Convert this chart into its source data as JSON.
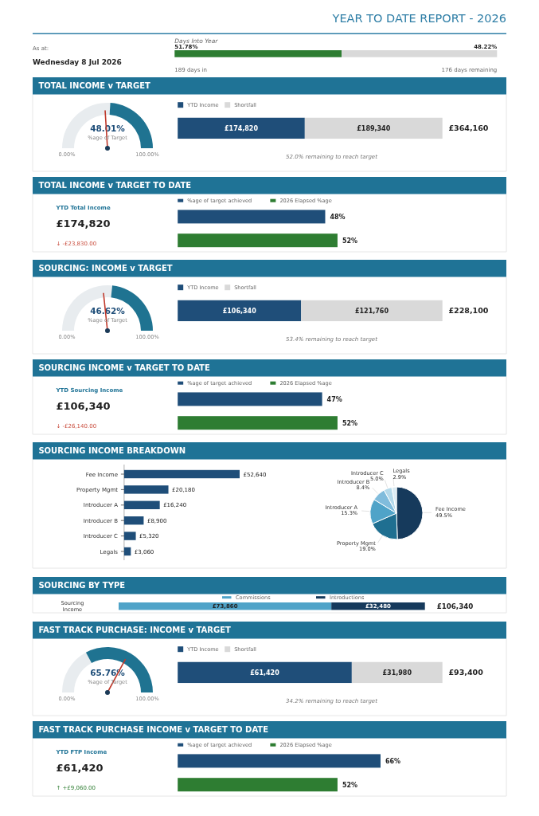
{
  "chart_data": [
    {
      "type": "other",
      "title": "YEAR TO DATE REPORT - 2026",
      "annotations": [
        "As at:",
        "Wednesday 8 Jul 2026"
      ]
    },
    {
      "type": "bar",
      "orientation": "horizontal",
      "stacked": true,
      "title": "Days Into Year",
      "categories": [
        null
      ],
      "series": [
        {
          "color": "#2e7d32",
          "values": [
            51.78
          ],
          "value_labels": [
            "51.78%"
          ]
        },
        {
          "color": "#d9d9d9",
          "values": [
            48.22
          ],
          "value_labels": [
            "48.22%"
          ]
        }
      ],
      "tick_labels": false,
      "annotations": [
        "189 days in",
        "176 days remaining"
      ]
    },
    {
      "type": "donut",
      "title": "TOTAL INCOME v TARGET",
      "categories": [
        null,
        null
      ],
      "values": [
        51.99,
        48.01
      ],
      "colors": [
        "#e8ecef",
        "#1f7391"
      ],
      "value_labels": [
        null,
        "48.01%"
      ],
      "annotations": [
        "%age of Target",
        "0.00%",
        "100.00%"
      ]
    },
    {
      "type": "bar",
      "orientation": "horizontal",
      "stacked": true,
      "categories": [
        null
      ],
      "series": [
        {
          "name": "YTD Income",
          "color": "#1f4e79",
          "values": [
            174820
          ],
          "value_labels": [
            "£174,820"
          ]
        },
        {
          "name": "Shortfall",
          "color": "#d9d9d9",
          "values": [
            189340
          ],
          "value_labels": [
            "£189,340"
          ]
        }
      ],
      "totals": [
        "£364,160"
      ],
      "legend": "top left",
      "tick_labels": false,
      "annotations": [
        "52.0% remaining to reach target"
      ]
    },
    {
      "type": "bar",
      "orientation": "horizontal",
      "stacked": true,
      "title": "TOTAL INCOME v TARGET TO DATE",
      "categories": [
        null,
        null
      ],
      "series": [
        {
          "name": "%age of target achieved",
          "color": "#1f4e79",
          "values": [
            48,
            null
          ],
          "value_labels": [
            "48%",
            null
          ]
        },
        {
          "name": "2026 Elapsed %age",
          "color": "#2e7d32",
          "values": [
            null,
            52
          ],
          "value_labels": [
            null,
            "52%"
          ]
        }
      ],
      "legend": "top left",
      "tick_labels": false,
      "annotations": [
        "YTD Total Income",
        "£174,820",
        "↓ -£23,830.00"
      ]
    },
    {
      "type": "donut",
      "title": "SOURCING: INCOME v TARGET",
      "categories": [
        null,
        null
      ],
      "values": [
        53.38,
        46.62
      ],
      "colors": [
        "#e8ecef",
        "#1f7391"
      ],
      "value_labels": [
        null,
        "46.62%"
      ],
      "annotations": [
        "%age of Target",
        "0.00%",
        "100.00%"
      ]
    },
    {
      "type": "bar",
      "orientation": "horizontal",
      "stacked": true,
      "categories": [
        null
      ],
      "series": [
        {
          "name": "YTD Income",
          "color": "#1f4e79",
          "values": [
            106340
          ],
          "value_labels": [
            "£106,340"
          ]
        },
        {
          "name": "Shortfall",
          "color": "#d9d9d9",
          "values": [
            121760
          ],
          "value_labels": [
            "£121,760"
          ]
        }
      ],
      "totals": [
        "£228,100"
      ],
      "legend": "top left",
      "tick_labels": false,
      "annotations": [
        "53.4% remaining to reach target"
      ]
    },
    {
      "type": "bar",
      "orientation": "horizontal",
      "stacked": true,
      "title": "SOURCING INCOME v TARGET TO DATE",
      "categories": [
        null,
        null
      ],
      "series": [
        {
          "name": "%age of target achieved",
          "color": "#1f4e79",
          "values": [
            47,
            null
          ],
          "value_labels": [
            "47%",
            null
          ]
        },
        {
          "name": "2026 Elapsed %age",
          "color": "#2e7d32",
          "values": [
            null,
            52
          ],
          "value_labels": [
            null,
            "52%"
          ]
        }
      ],
      "legend": "top left",
      "tick_labels": false,
      "annotations": [
        "YTD Sourcing Income",
        "£106,340",
        "↓ -£26,140.00"
      ]
    },
    {
      "type": "bar",
      "orientation": "horizontal",
      "title": "SOURCING INCOME BREAKDOWN",
      "categories": [
        "Fee Income",
        "Property Mgmt",
        "Introducer A",
        "Introducer B",
        "Introducer C",
        "Legals"
      ],
      "values": [
        52640,
        20180,
        16240,
        8900,
        5320,
        3060
      ],
      "color": "#1f4e79",
      "value_labels": [
        "£52,640",
        "£20,180",
        "£16,240",
        "£8,900",
        "£5,320",
        "£3,060"
      ],
      "tick_labels": "y"
    },
    {
      "type": "pie",
      "categories": [
        "Fee Income",
        "Property Mgmt",
        "Introducer A",
        "Introducer B",
        "Introducer C",
        "Legals"
      ],
      "values": [
        49.5,
        19.0,
        15.3,
        8.4,
        5.0,
        2.9
      ],
      "colors": [
        "#163a5c",
        "#1f6f91",
        "#4fa3c8",
        "#80bcdc",
        "#b4d9ea",
        "#dcecf4"
      ],
      "value_labels": [
        "49.5%",
        "19.0%",
        "15.3%",
        "8.4%",
        "5.0%",
        "2.9%"
      ]
    },
    {
      "type": "bar",
      "orientation": "horizontal",
      "stacked": true,
      "title": "SOURCING BY TYPE",
      "categories": [
        "Sourcing Income"
      ],
      "series": [
        {
          "name": "Commissions",
          "color": "#4fa3c8",
          "values": [
            73860
          ],
          "value_labels": [
            "£73,860"
          ]
        },
        {
          "name": "Introductions",
          "color": "#163a5c",
          "values": [
            32480
          ],
          "value_labels": [
            "£32,480"
          ]
        }
      ],
      "totals": [
        "£106,340"
      ],
      "legend": "top",
      "tick_labels": "y"
    },
    {
      "type": "donut",
      "title": "FAST TRACK PURCHASE: INCOME v TARGET",
      "categories": [
        null,
        null
      ],
      "values": [
        34.24,
        65.76
      ],
      "colors": [
        "#e8ecef",
        "#1f7391"
      ],
      "value_labels": [
        null,
        "65.76%"
      ],
      "annotations": [
        "%age of Target",
        "0.00%",
        "100.00%"
      ]
    },
    {
      "type": "bar",
      "orientation": "horizontal",
      "stacked": true,
      "categories": [
        null
      ],
      "series": [
        {
          "name": "YTD Income",
          "color": "#1f4e79",
          "values": [
            61420
          ],
          "value_labels": [
            "£61,420"
          ]
        },
        {
          "name": "Shortfall",
          "color": "#d9d9d9",
          "values": [
            31980
          ],
          "value_labels": [
            "£31,980"
          ]
        }
      ],
      "totals": [
        "£93,400"
      ],
      "legend": "top left",
      "tick_labels": false,
      "annotations": [
        "34.2% remaining to reach target"
      ]
    },
    {
      "type": "bar",
      "orientation": "horizontal",
      "stacked": true,
      "title": "FAST TRACK PURCHASE INCOME v TARGET TO DATE",
      "categories": [
        null,
        null
      ],
      "series": [
        {
          "name": "%age of target achieved",
          "color": "#1f4e79",
          "values": [
            66,
            null
          ],
          "value_labels": [
            "66%",
            null
          ]
        },
        {
          "name": "2026 Elapsed %age",
          "color": "#2e7d32",
          "values": [
            null,
            52
          ],
          "value_labels": [
            null,
            "52%"
          ]
        }
      ],
      "legend": "top left",
      "tick_labels": false,
      "annotations": [
        "YTD FTP Income",
        "£61,420",
        "↑ +£9,060.00"
      ]
    }
  ]
}
